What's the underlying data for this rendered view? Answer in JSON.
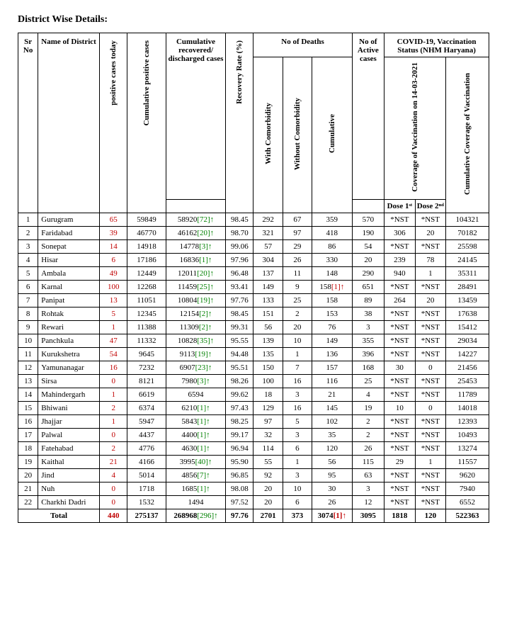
{
  "title": "District Wise Details:",
  "headers": {
    "sr_no": "Sr No",
    "name": "Name of District",
    "pos_today": "positive cases today",
    "cum_pos": "Cumulative positive cases",
    "cum_rec": "Cumulative recovered/ discharged cases",
    "rec_rate": "Recovery Rate (%)",
    "deaths": "No of Deaths",
    "with_com": "With Comorbidity",
    "wo_com": "Without Comorbidity",
    "cum_deaths": "Cumulative",
    "active": "No of Active cases",
    "vacc_status": "COVID-19, Vaccination Status (NHM Haryana)",
    "cov_vac": "Coverage of Vaccination on 14-03-2021",
    "dose1": "Dose 1ˢᵗ",
    "dose2": "Dose 2ⁿᵈ",
    "cum_cov": "Cumulative Coverage of Vaccination"
  },
  "rows": [
    {
      "sr": "1",
      "name": "Gurugram",
      "pos_today": "65",
      "cum_pos": "59849",
      "rec": "58920",
      "rec_delta": "[72]",
      "rec_arrow": "up",
      "rate": "98.45",
      "wc": "292",
      "woc": "67",
      "cd": "359",
      "cd_delta": "",
      "cd_arrow": "",
      "active": "570",
      "d1": "*NST",
      "d2": "*NST",
      "cc": "104321"
    },
    {
      "sr": "2",
      "name": "Faridabad",
      "pos_today": "39",
      "cum_pos": "46770",
      "rec": "46162",
      "rec_delta": "[20]",
      "rec_arrow": "up",
      "rate": "98.70",
      "wc": "321",
      "woc": "97",
      "cd": "418",
      "cd_delta": "",
      "cd_arrow": "",
      "active": "190",
      "d1": "306",
      "d2": "20",
      "cc": "70182"
    },
    {
      "sr": "3",
      "name": "Sonepat",
      "pos_today": "14",
      "cum_pos": "14918",
      "rec": "14778",
      "rec_delta": "[3]",
      "rec_arrow": "up",
      "rate": "99.06",
      "wc": "57",
      "woc": "29",
      "cd": "86",
      "cd_delta": "",
      "cd_arrow": "",
      "active": "54",
      "d1": "*NST",
      "d2": "*NST",
      "cc": "25598"
    },
    {
      "sr": "4",
      "name": "Hisar",
      "pos_today": "6",
      "cum_pos": "17186",
      "rec": "16836",
      "rec_delta": "[1]",
      "rec_arrow": "up",
      "rate": "97.96",
      "wc": "304",
      "woc": "26",
      "cd": "330",
      "cd_delta": "",
      "cd_arrow": "",
      "active": "20",
      "d1": "239",
      "d2": "78",
      "cc": "24145"
    },
    {
      "sr": "5",
      "name": "Ambala",
      "pos_today": "49",
      "cum_pos": "12449",
      "rec": "12011",
      "rec_delta": "[20]",
      "rec_arrow": "up",
      "rate": "96.48",
      "wc": "137",
      "woc": "11",
      "cd": "148",
      "cd_delta": "",
      "cd_arrow": "",
      "active": "290",
      "d1": "940",
      "d2": "1",
      "cc": "35311"
    },
    {
      "sr": "6",
      "name": "Karnal",
      "pos_today": "100",
      "cum_pos": "12268",
      "rec": "11459",
      "rec_delta": "[25]",
      "rec_arrow": "up",
      "rate": "93.41",
      "wc": "149",
      "woc": "9",
      "cd": "158",
      "cd_delta": "[1]",
      "cd_arrow": "up-red",
      "active": "651",
      "d1": "*NST",
      "d2": "*NST",
      "cc": "28491"
    },
    {
      "sr": "7",
      "name": "Panipat",
      "pos_today": "13",
      "cum_pos": "11051",
      "rec": "10804",
      "rec_delta": "[19]",
      "rec_arrow": "up",
      "rate": "97.76",
      "wc": "133",
      "woc": "25",
      "cd": "158",
      "cd_delta": "",
      "cd_arrow": "",
      "active": "89",
      "d1": "264",
      "d2": "20",
      "cc": "13459"
    },
    {
      "sr": "8",
      "name": "Rohtak",
      "pos_today": "5",
      "cum_pos": "12345",
      "rec": "12154",
      "rec_delta": "[2]",
      "rec_arrow": "up",
      "rate": "98.45",
      "wc": "151",
      "woc": "2",
      "cd": "153",
      "cd_delta": "",
      "cd_arrow": "",
      "active": "38",
      "d1": "*NST",
      "d2": "*NST",
      "cc": "17638"
    },
    {
      "sr": "9",
      "name": "Rewari",
      "pos_today": "1",
      "cum_pos": "11388",
      "rec": "11309",
      "rec_delta": "[2]",
      "rec_arrow": "up",
      "rate": "99.31",
      "wc": "56",
      "woc": "20",
      "cd": "76",
      "cd_delta": "",
      "cd_arrow": "",
      "active": "3",
      "d1": "*NST",
      "d2": "*NST",
      "cc": "15412"
    },
    {
      "sr": "10",
      "name": "Panchkula",
      "pos_today": "47",
      "cum_pos": "11332",
      "rec": "10828",
      "rec_delta": "[35]",
      "rec_arrow": "up",
      "rate": "95.55",
      "wc": "139",
      "woc": "10",
      "cd": "149",
      "cd_delta": "",
      "cd_arrow": "",
      "active": "355",
      "d1": "*NST",
      "d2": "*NST",
      "cc": "29034"
    },
    {
      "sr": "11",
      "name": "Kurukshetra",
      "pos_today": "54",
      "cum_pos": "9645",
      "rec": "9113",
      "rec_delta": "[19]",
      "rec_arrow": "up",
      "rate": "94.48",
      "wc": "135",
      "woc": "1",
      "cd": "136",
      "cd_delta": "",
      "cd_arrow": "",
      "active": "396",
      "d1": "*NST",
      "d2": "*NST",
      "cc": "14227"
    },
    {
      "sr": "12",
      "name": "Yamunanagar",
      "pos_today": "16",
      "cum_pos": "7232",
      "rec": "6907",
      "rec_delta": "[23]",
      "rec_arrow": "up",
      "rate": "95.51",
      "wc": "150",
      "woc": "7",
      "cd": "157",
      "cd_delta": "",
      "cd_arrow": "",
      "active": "168",
      "d1": "30",
      "d2": "0",
      "cc": "21456"
    },
    {
      "sr": "13",
      "name": "Sirsa",
      "pos_today": "0",
      "cum_pos": "8121",
      "rec": "7980",
      "rec_delta": "[3]",
      "rec_arrow": "up",
      "rate": "98.26",
      "wc": "100",
      "woc": "16",
      "cd": "116",
      "cd_delta": "",
      "cd_arrow": "",
      "active": "25",
      "d1": "*NST",
      "d2": "*NST",
      "cc": "25453"
    },
    {
      "sr": "14",
      "name": "Mahindergarh",
      "pos_today": "1",
      "cum_pos": "6619",
      "rec": "6594",
      "rec_delta": "",
      "rec_arrow": "",
      "rate": "99.62",
      "wc": "18",
      "woc": "3",
      "cd": "21",
      "cd_delta": "",
      "cd_arrow": "",
      "active": "4",
      "d1": "*NST",
      "d2": "*NST",
      "cc": "11789"
    },
    {
      "sr": "15",
      "name": "Bhiwani",
      "pos_today": "2",
      "cum_pos": "6374",
      "rec": "6210",
      "rec_delta": "[1]",
      "rec_arrow": "up",
      "rate": "97.43",
      "wc": "129",
      "woc": "16",
      "cd": "145",
      "cd_delta": "",
      "cd_arrow": "",
      "active": "19",
      "d1": "10",
      "d2": "0",
      "cc": "14018"
    },
    {
      "sr": "16",
      "name": "Jhajjar",
      "pos_today": "1",
      "cum_pos": "5947",
      "rec": "5843",
      "rec_delta": "[1]",
      "rec_arrow": "up",
      "rate": "98.25",
      "wc": "97",
      "woc": "5",
      "cd": "102",
      "cd_delta": "",
      "cd_arrow": "",
      "active": "2",
      "d1": "*NST",
      "d2": "*NST",
      "cc": "12393"
    },
    {
      "sr": "17",
      "name": "Palwal",
      "pos_today": "0",
      "cum_pos": "4437",
      "rec": "4400",
      "rec_delta": "[1]",
      "rec_arrow": "up",
      "rate": "99.17",
      "wc": "32",
      "woc": "3",
      "cd": "35",
      "cd_delta": "",
      "cd_arrow": "",
      "active": "2",
      "d1": "*NST",
      "d2": "*NST",
      "cc": "10493"
    },
    {
      "sr": "18",
      "name": "Fatehabad",
      "pos_today": "2",
      "cum_pos": "4776",
      "rec": "4630",
      "rec_delta": "[1]",
      "rec_arrow": "up",
      "rate": "96.94",
      "wc": "114",
      "woc": "6",
      "cd": "120",
      "cd_delta": "",
      "cd_arrow": "",
      "active": "26",
      "d1": "*NST",
      "d2": "*NST",
      "cc": "13274"
    },
    {
      "sr": "19",
      "name": "Kaithal",
      "pos_today": "21",
      "cum_pos": "4166",
      "rec": "3995",
      "rec_delta": "[40]",
      "rec_arrow": "up",
      "rate": "95.90",
      "wc": "55",
      "woc": "1",
      "cd": "56",
      "cd_delta": "",
      "cd_arrow": "",
      "active": "115",
      "d1": "29",
      "d2": "1",
      "cc": "11557"
    },
    {
      "sr": "20",
      "name": "Jind",
      "pos_today": "4",
      "cum_pos": "5014",
      "rec": "4856",
      "rec_delta": "[7]",
      "rec_arrow": "up",
      "rate": "96.85",
      "wc": "92",
      "woc": "3",
      "cd": "95",
      "cd_delta": "",
      "cd_arrow": "",
      "active": "63",
      "d1": "*NST",
      "d2": "*NST",
      "cc": "9620"
    },
    {
      "sr": "21",
      "name": "Nuh",
      "pos_today": "0",
      "cum_pos": "1718",
      "rec": "1685",
      "rec_delta": "[1]",
      "rec_arrow": "up",
      "rate": "98.08",
      "wc": "20",
      "woc": "10",
      "cd": "30",
      "cd_delta": "",
      "cd_arrow": "",
      "active": "3",
      "d1": "*NST",
      "d2": "*NST",
      "cc": "7940"
    },
    {
      "sr": "22",
      "name": "Charkhi Dadri",
      "pos_today": "0",
      "cum_pos": "1532",
      "rec": "1494",
      "rec_delta": "",
      "rec_arrow": "",
      "rate": "97.52",
      "wc": "20",
      "woc": "6",
      "cd": "26",
      "cd_delta": "",
      "cd_arrow": "",
      "active": "12",
      "d1": "*NST",
      "d2": "*NST",
      "cc": "6552"
    }
  ],
  "total": {
    "label": "Total",
    "pos_today": "440",
    "cum_pos": "275137",
    "rec": "268968",
    "rec_delta": "[296]",
    "rec_arrow": "up",
    "rate": "97.76",
    "wc": "2701",
    "woc": "373",
    "cd": "3074",
    "cd_delta": "[1]",
    "cd_arrow": "up-red",
    "active": "3095",
    "d1": "1818",
    "d2": "120",
    "cc": "522363"
  },
  "colors": {
    "red": "#c00000",
    "green": "#008000",
    "black": "#000000"
  }
}
